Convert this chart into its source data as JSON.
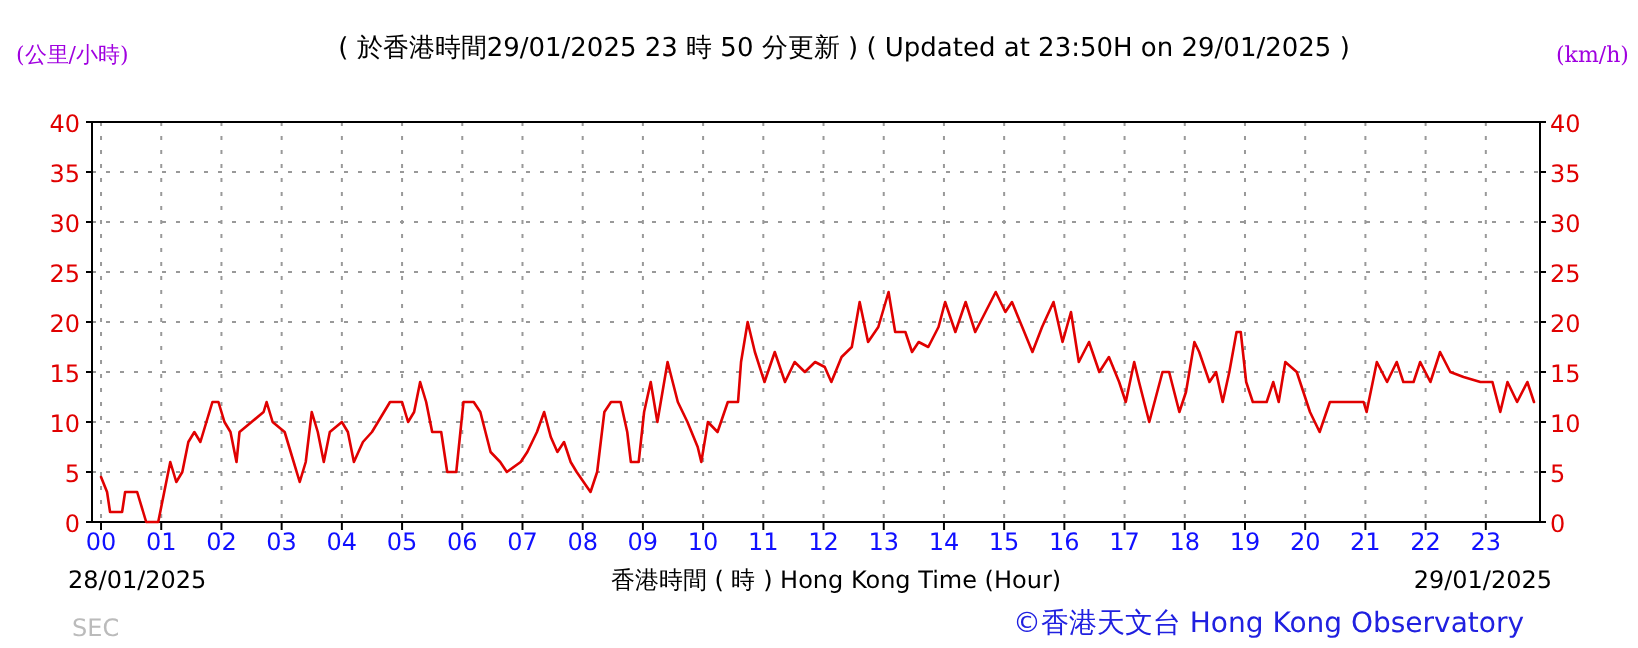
{
  "chart_data": {
    "type": "line",
    "title": "( 於香港時間29/01/2025 23 時 50 分更新 ) ( Updated at 23:50H on 29/01/2025 )",
    "xlabel": "香港時間 ( 時 )  Hong Kong Time (Hour)",
    "ylabel": "(公里/小時)",
    "y2label": "(km/h)",
    "annotations": [
      "28/01/2025",
      "29/01/2025",
      "SEC",
      "©香港天文台 Hong Kong Observatory"
    ],
    "xlim": [
      -0.15,
      23.9
    ],
    "xticks": [
      {
        "value": 0,
        "label": "00"
      },
      {
        "value": 1,
        "label": "01"
      },
      {
        "value": 2,
        "label": "02"
      },
      {
        "value": 3,
        "label": "03"
      },
      {
        "value": 4,
        "label": "04"
      },
      {
        "value": 5,
        "label": "05"
      },
      {
        "value": 6,
        "label": "06"
      },
      {
        "value": 7,
        "label": "07"
      },
      {
        "value": 8,
        "label": "08"
      },
      {
        "value": 9,
        "label": "09"
      },
      {
        "value": 10,
        "label": "10"
      },
      {
        "value": 11,
        "label": "11"
      },
      {
        "value": 12,
        "label": "12"
      },
      {
        "value": 13,
        "label": "13"
      },
      {
        "value": 14,
        "label": "14"
      },
      {
        "value": 15,
        "label": "15"
      },
      {
        "value": 16,
        "label": "16"
      },
      {
        "value": 17,
        "label": "17"
      },
      {
        "value": 18,
        "label": "18"
      },
      {
        "value": 19,
        "label": "19"
      },
      {
        "value": 20,
        "label": "20"
      },
      {
        "value": 21,
        "label": "21"
      },
      {
        "value": 22,
        "label": "22"
      },
      {
        "value": 23,
        "label": "23"
      }
    ],
    "ylim": [
      0,
      40
    ],
    "yticks": [
      0,
      5,
      10,
      15,
      20,
      25,
      30,
      35,
      40
    ],
    "y2lim": [
      0,
      40
    ],
    "y2ticks": [
      0,
      5,
      10,
      15,
      20,
      25,
      30,
      35,
      40
    ],
    "grid": true,
    "marker": "none",
    "line_style": "solid",
    "series": [
      {
        "color": "#e00000",
        "x": [
          0,
          0.1,
          0.15,
          0.35,
          0.4,
          0.6,
          0.7,
          0.75,
          0.95,
          1.05,
          1.15,
          1.25,
          1.35,
          1.45,
          1.55,
          1.65,
          1.75,
          1.85,
          1.95,
          2.05,
          2.15,
          2.25,
          2.3,
          2.5,
          2.7,
          2.75,
          2.85,
          3.05,
          3.2,
          3.3,
          3.4,
          3.5,
          3.6,
          3.7,
          3.8,
          4.0,
          4.1,
          4.2,
          4.35,
          4.5,
          4.6,
          4.8,
          5.0,
          5.1,
          5.2,
          5.3,
          5.4,
          5.5,
          5.65,
          5.75,
          5.9,
          6.02,
          6.19,
          6.3,
          6.47,
          6.63,
          6.74,
          6.97,
          7.08,
          7.24,
          7.36,
          7.47,
          7.58,
          7.69,
          7.8,
          7.9,
          8.13,
          8.24,
          8.36,
          8.47,
          8.63,
          8.74,
          8.8,
          8.93,
          9.02,
          9.13,
          9.24,
          9.41,
          9.58,
          9.74,
          9.91,
          9.97,
          10.08,
          10.24,
          10.41,
          10.58,
          10.63,
          10.74,
          10.86,
          11.02,
          11.19,
          11.36,
          11.52,
          11.69,
          11.86,
          12.02,
          12.13,
          12.3,
          12.47,
          12.6,
          12.74,
          12.91,
          13.08,
          13.19,
          13.36,
          13.47,
          13.58,
          13.74,
          13.91,
          14.02,
          14.19,
          14.36,
          14.52,
          14.69,
          14.86,
          15.02,
          15.13,
          15.3,
          15.47,
          15.63,
          15.82,
          15.97,
          16.11,
          16.24,
          16.41,
          16.58,
          16.74,
          16.91,
          17.02,
          17.16,
          17.24,
          17.41,
          17.63,
          17.74,
          17.91,
          18.02,
          18.16,
          18.24,
          18.41,
          18.52,
          18.63,
          18.74,
          18.86,
          18.93,
          19.02,
          19.13,
          19.36,
          19.47,
          19.56,
          19.67,
          19.86,
          19.97,
          20.08,
          20.24,
          20.41,
          20.97,
          21.02,
          21.19,
          21.36,
          21.52,
          21.63,
          21.8,
          21.91,
          22.08,
          22.24,
          22.41,
          22.63,
          22.91,
          23.11,
          23.24,
          23.36,
          23.52,
          23.69,
          23.8
        ],
        "values": [
          4.5,
          3,
          1,
          1,
          3,
          3,
          1,
          0,
          0,
          3,
          6,
          4,
          5,
          8,
          9,
          8,
          10,
          12,
          12,
          10,
          9,
          6,
          9,
          10,
          11,
          12,
          10,
          9,
          6,
          4,
          6,
          11,
          9,
          6,
          9,
          10,
          9,
          6,
          8,
          9,
          10,
          12,
          12,
          10,
          11,
          14,
          12,
          9,
          9,
          5,
          5,
          12,
          12,
          11,
          7,
          6,
          5,
          6,
          7,
          9,
          11,
          8.5,
          7,
          8,
          6,
          5,
          3,
          5,
          11,
          12,
          12,
          9,
          6,
          6,
          11,
          14,
          10,
          16,
          12,
          10,
          7.5,
          6,
          10,
          9,
          12,
          12,
          16,
          20,
          17,
          14,
          17,
          14,
          16,
          15,
          16,
          15.5,
          14,
          16.5,
          17.5,
          22,
          18,
          19.5,
          23,
          19,
          19,
          17,
          18,
          17.5,
          19.5,
          22,
          19,
          22,
          19,
          21,
          23,
          21,
          22,
          19.5,
          17,
          19.5,
          22,
          18,
          21,
          16,
          18,
          15,
          16.5,
          14,
          12,
          16,
          14,
          10,
          15,
          15,
          11,
          13,
          18,
          17,
          14,
          15,
          12,
          15,
          19,
          19,
          14,
          12,
          12,
          14,
          12,
          16,
          15,
          13,
          11,
          9,
          12,
          12,
          11,
          16,
          14,
          16,
          14,
          14,
          16,
          14,
          17,
          15,
          14.5,
          14,
          14,
          11,
          14,
          12,
          14,
          12
        ]
      }
    ]
  }
}
